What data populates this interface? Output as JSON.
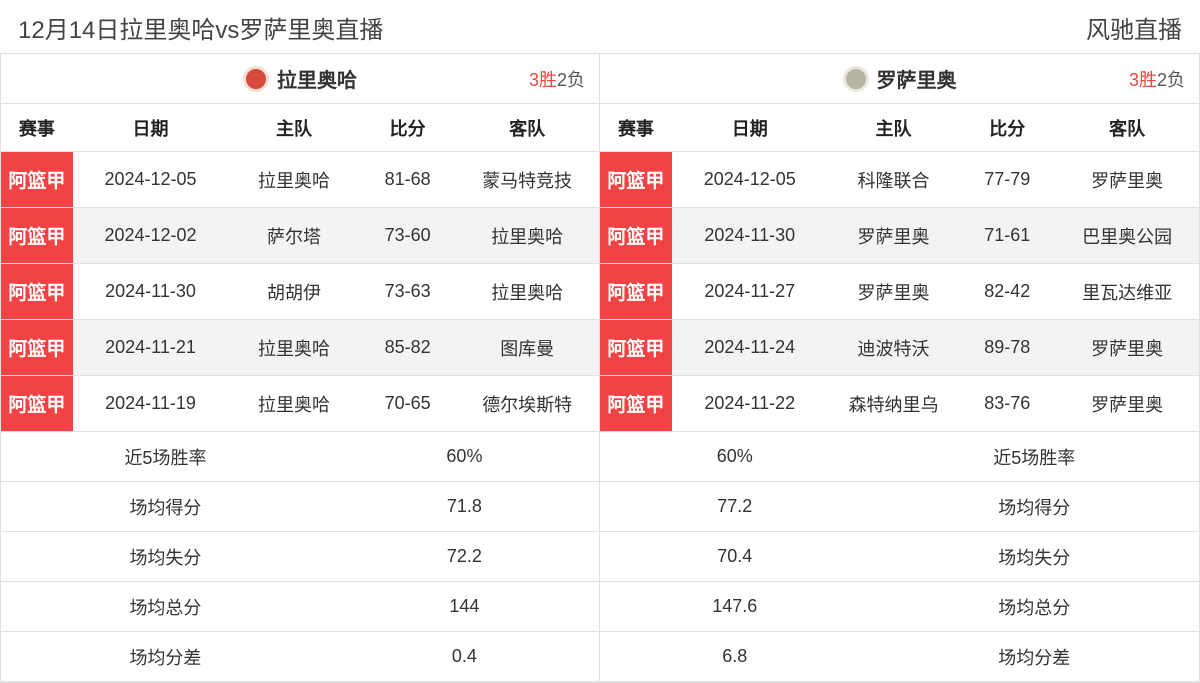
{
  "header": {
    "title_left": "12月14日拉里奥哈vs罗萨里奥直播",
    "title_right": "风驰直播"
  },
  "colors": {
    "league_badge_bg": "#f04444",
    "league_badge_text": "#ffffff",
    "win_text": "#e74646",
    "loss_text": "#555555",
    "row_alt_bg": "#f3f3f3",
    "border": "#e0e0e0",
    "text": "#333333",
    "logo_left_bg": "#d84a3a",
    "logo_right_bg": "#b8b4a2"
  },
  "columns": {
    "league": "赛事",
    "date": "日期",
    "home": "主队",
    "score": "比分",
    "away": "客队"
  },
  "left": {
    "team_name": "拉里奥哈",
    "record_win": "3胜",
    "record_loss": "2负",
    "rows": [
      {
        "league": "阿篮甲",
        "date": "2024-12-05",
        "home": "拉里奥哈",
        "score": "81-68",
        "away": "蒙马特竞技"
      },
      {
        "league": "阿篮甲",
        "date": "2024-12-02",
        "home": "萨尔塔",
        "score": "73-60",
        "away": "拉里奥哈"
      },
      {
        "league": "阿篮甲",
        "date": "2024-11-30",
        "home": "胡胡伊",
        "score": "73-63",
        "away": "拉里奥哈"
      },
      {
        "league": "阿篮甲",
        "date": "2024-11-21",
        "home": "拉里奥哈",
        "score": "85-82",
        "away": "图库曼"
      },
      {
        "league": "阿篮甲",
        "date": "2024-11-19",
        "home": "拉里奥哈",
        "score": "70-65",
        "away": "德尔埃斯特"
      }
    ],
    "stats": [
      {
        "label": "近5场胜率",
        "value": "60%"
      },
      {
        "label": "场均得分",
        "value": "71.8"
      },
      {
        "label": "场均失分",
        "value": "72.2"
      },
      {
        "label": "场均总分",
        "value": "144"
      },
      {
        "label": "场均分差",
        "value": "0.4"
      }
    ]
  },
  "right": {
    "team_name": "罗萨里奥",
    "record_win": "3胜",
    "record_loss": "2负",
    "rows": [
      {
        "league": "阿篮甲",
        "date": "2024-12-05",
        "home": "科隆联合",
        "score": "77-79",
        "away": "罗萨里奥"
      },
      {
        "league": "阿篮甲",
        "date": "2024-11-30",
        "home": "罗萨里奥",
        "score": "71-61",
        "away": "巴里奥公园"
      },
      {
        "league": "阿篮甲",
        "date": "2024-11-27",
        "home": "罗萨里奥",
        "score": "82-42",
        "away": "里瓦达维亚"
      },
      {
        "league": "阿篮甲",
        "date": "2024-11-24",
        "home": "迪波特沃",
        "score": "89-78",
        "away": "罗萨里奥"
      },
      {
        "league": "阿篮甲",
        "date": "2024-11-22",
        "home": "森特纳里乌",
        "score": "83-76",
        "away": "罗萨里奥"
      }
    ],
    "stats": [
      {
        "label": "近5场胜率",
        "value": "60%"
      },
      {
        "label": "场均得分",
        "value": "77.2"
      },
      {
        "label": "场均失分",
        "value": "70.4"
      },
      {
        "label": "场均总分",
        "value": "147.6"
      },
      {
        "label": "场均分差",
        "value": "6.8"
      }
    ]
  }
}
